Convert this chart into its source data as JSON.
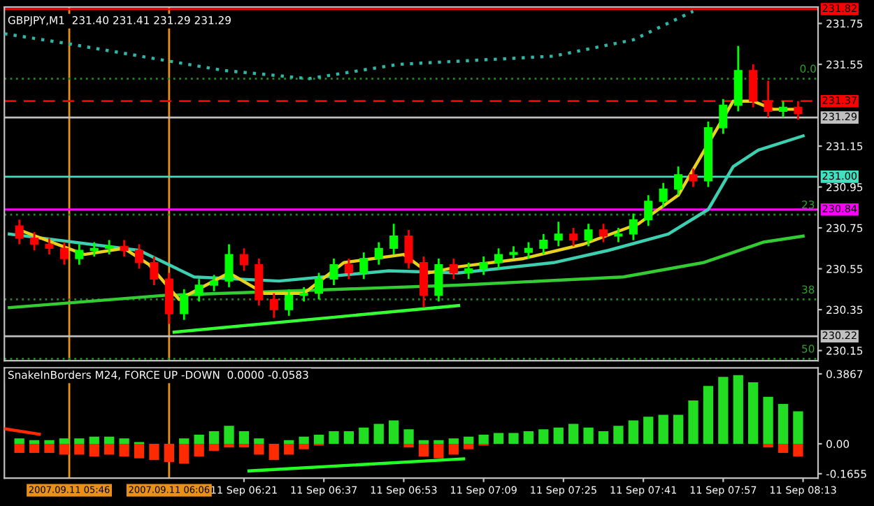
{
  "chart_data": [
    {
      "type": "candlestick",
      "title": "GBPJPY,M1  231.40 231.41 231.29 231.29",
      "tick_labels": "y",
      "grid": false,
      "xlim": [
        "2007-09-11T05:33",
        "2007-09-11T08:16"
      ],
      "ylim": [
        230.1,
        231.83
      ],
      "yticks": [
        231.75,
        231.55,
        231.15,
        230.95,
        230.75,
        230.55,
        230.35,
        230.15
      ],
      "series": [
        {
          "type": "line",
          "color": "#2fb5a5",
          "line_style": "dotted",
          "x": [
            "2007-09-11T05:33",
            "2007-09-11T05:46",
            "2007-09-11T06:05",
            "2007-09-11T06:17",
            "2007-09-11T06:34",
            "2007-09-11T06:52",
            "2007-09-11T07:23",
            "2007-09-11T07:39",
            "2007-09-11T07:51"
          ],
          "values": [
            231.7,
            231.65,
            231.57,
            231.52,
            231.48,
            231.55,
            231.59,
            231.67,
            231.81
          ]
        },
        {
          "type": "line",
          "color": "#33cc33",
          "x": [
            "2007-09-11T05:34",
            "2007-09-11T06:05",
            "2007-09-11T07:04",
            "2007-09-11T07:37",
            "2007-09-11T07:53",
            "2007-09-11T08:05",
            "2007-09-11T08:13"
          ],
          "values": [
            230.36,
            230.42,
            230.47,
            230.51,
            230.58,
            230.68,
            230.71
          ]
        },
        {
          "type": "line",
          "color": "#33ff33",
          "x": [
            "2007-09-11T06:07",
            "2007-09-11T07:04"
          ],
          "values": [
            230.24,
            230.37
          ]
        },
        {
          "type": "line",
          "color": "#3cd0b0",
          "x": [
            "2007-09-11T05:34",
            "2007-09-11T06:00",
            "2007-09-11T06:11",
            "2007-09-11T06:28",
            "2007-09-11T06:50",
            "2007-09-11T07:04",
            "2007-09-11T07:23",
            "2007-09-11T07:34",
            "2007-09-11T07:46",
            "2007-09-11T07:54",
            "2007-09-11T07:59",
            "2007-09-11T08:04",
            "2007-09-11T08:13"
          ],
          "values": [
            230.72,
            230.64,
            230.51,
            230.49,
            230.54,
            230.53,
            230.58,
            230.64,
            230.72,
            230.84,
            231.05,
            231.13,
            231.2
          ]
        },
        {
          "type": "line",
          "color": "#e8d21d",
          "x": [
            "2007-09-11T05:36",
            "2007-09-11T05:49",
            "2007-09-11T05:57",
            "2007-09-11T06:02",
            "2007-09-11T06:08",
            "2007-09-11T06:18",
            "2007-09-11T06:25",
            "2007-09-11T06:33",
            "2007-09-11T06:41",
            "2007-09-11T06:53",
            "2007-09-11T06:58",
            "2007-09-11T07:04",
            "2007-09-11T07:17",
            "2007-09-11T07:29",
            "2007-09-11T07:40",
            "2007-09-11T07:48",
            "2007-09-11T07:53",
            "2007-09-11T07:59",
            "2007-09-11T08:03",
            "2007-09-11T08:07",
            "2007-09-11T08:12"
          ],
          "values": [
            230.74,
            230.62,
            230.65,
            230.57,
            230.4,
            230.53,
            230.43,
            230.43,
            230.58,
            230.62,
            230.53,
            230.56,
            230.6,
            230.67,
            230.77,
            230.91,
            231.12,
            231.37,
            231.37,
            231.33,
            231.33
          ]
        },
        {
          "type": "candlestick",
          "x": [
            "2007-09-11T05:36",
            "2007-09-11T05:39",
            "2007-09-11T05:42",
            "2007-09-11T05:45",
            "2007-09-11T05:48",
            "2007-09-11T05:51",
            "2007-09-11T05:54",
            "2007-09-11T05:57",
            "2007-09-11T06:00",
            "2007-09-11T06:03",
            "2007-09-11T06:06",
            "2007-09-11T06:09",
            "2007-09-11T06:12",
            "2007-09-11T06:15",
            "2007-09-11T06:18",
            "2007-09-11T06:21",
            "2007-09-11T06:24",
            "2007-09-11T06:27",
            "2007-09-11T06:30",
            "2007-09-11T06:33",
            "2007-09-11T06:36",
            "2007-09-11T06:39",
            "2007-09-11T06:42",
            "2007-09-11T06:45",
            "2007-09-11T06:48",
            "2007-09-11T06:51",
            "2007-09-11T06:54",
            "2007-09-11T06:57",
            "2007-09-11T07:00",
            "2007-09-11T07:03",
            "2007-09-11T07:06",
            "2007-09-11T07:09",
            "2007-09-11T07:12",
            "2007-09-11T07:15",
            "2007-09-11T07:18",
            "2007-09-11T07:21",
            "2007-09-11T07:24",
            "2007-09-11T07:27",
            "2007-09-11T07:30",
            "2007-09-11T07:33",
            "2007-09-11T07:36",
            "2007-09-11T07:39",
            "2007-09-11T07:42",
            "2007-09-11T07:45",
            "2007-09-11T07:48",
            "2007-09-11T07:51",
            "2007-09-11T07:54",
            "2007-09-11T07:57",
            "2007-09-11T08:00",
            "2007-09-11T08:03",
            "2007-09-11T08:06",
            "2007-09-11T08:09",
            "2007-09-11T08:12"
          ],
          "ohlc": [
            [
              230.76,
              230.79,
              230.67,
              230.7
            ],
            [
              230.7,
              230.73,
              230.64,
              230.67
            ],
            [
              230.67,
              230.7,
              230.62,
              230.65
            ],
            [
              230.65,
              230.68,
              230.57,
              230.6
            ],
            [
              230.6,
              230.67,
              230.57,
              230.64
            ],
            [
              230.64,
              230.68,
              230.61,
              230.65
            ],
            [
              230.65,
              230.69,
              230.62,
              230.66
            ],
            [
              230.66,
              230.69,
              230.61,
              230.64
            ],
            [
              230.64,
              230.67,
              230.55,
              230.58
            ],
            [
              230.58,
              230.61,
              230.47,
              230.5
            ],
            [
              230.5,
              230.53,
              230.28,
              230.33
            ],
            [
              230.33,
              230.45,
              230.3,
              230.42
            ],
            [
              230.42,
              230.5,
              230.39,
              230.47
            ],
            [
              230.47,
              230.52,
              230.44,
              230.49
            ],
            [
              230.49,
              230.67,
              230.46,
              230.62
            ],
            [
              230.62,
              230.65,
              230.54,
              230.57
            ],
            [
              230.57,
              230.6,
              230.37,
              230.4
            ],
            [
              230.4,
              230.43,
              230.31,
              230.35
            ],
            [
              230.35,
              230.45,
              230.32,
              230.42
            ],
            [
              230.42,
              230.46,
              230.39,
              230.43
            ],
            [
              230.43,
              230.53,
              230.4,
              230.5
            ],
            [
              230.5,
              230.6,
              230.47,
              230.57
            ],
            [
              230.57,
              230.6,
              230.5,
              230.53
            ],
            [
              230.53,
              230.63,
              230.5,
              230.6
            ],
            [
              230.6,
              230.68,
              230.57,
              230.65
            ],
            [
              230.65,
              230.77,
              230.62,
              230.71
            ],
            [
              230.71,
              230.74,
              230.55,
              230.58
            ],
            [
              230.58,
              230.61,
              230.36,
              230.42
            ],
            [
              230.42,
              230.6,
              230.39,
              230.57
            ],
            [
              230.57,
              230.6,
              230.5,
              230.53
            ],
            [
              230.53,
              230.58,
              230.5,
              230.55
            ],
            [
              230.55,
              230.61,
              230.52,
              230.58
            ],
            [
              230.58,
              230.65,
              230.55,
              230.62
            ],
            [
              230.62,
              230.66,
              230.6,
              230.63
            ],
            [
              230.63,
              230.68,
              230.6,
              230.65
            ],
            [
              230.65,
              230.72,
              230.62,
              230.69
            ],
            [
              230.69,
              230.78,
              230.66,
              230.72
            ],
            [
              230.72,
              230.75,
              230.66,
              230.69
            ],
            [
              230.69,
              230.77,
              230.66,
              230.74
            ],
            [
              230.74,
              230.77,
              230.68,
              230.71
            ],
            [
              230.71,
              230.75,
              230.68,
              230.72
            ],
            [
              230.72,
              230.82,
              230.69,
              230.79
            ],
            [
              230.79,
              230.91,
              230.76,
              230.88
            ],
            [
              230.88,
              230.97,
              230.85,
              230.94
            ],
            [
              230.94,
              231.05,
              230.91,
              231.01
            ],
            [
              231.01,
              231.04,
              230.95,
              230.98
            ],
            [
              230.98,
              231.27,
              230.95,
              231.24
            ],
            [
              231.24,
              231.38,
              231.21,
              231.35
            ],
            [
              231.35,
              231.64,
              231.32,
              231.52
            ],
            [
              231.52,
              231.55,
              231.34,
              231.37
            ],
            [
              231.37,
              231.47,
              231.29,
              231.32
            ],
            [
              231.32,
              231.37,
              231.29,
              231.34
            ],
            [
              231.34,
              231.37,
              231.28,
              231.31
            ]
          ],
          "colors": [
            "#ff0000",
            "#ff0000",
            "#ff0000",
            "#ff0000",
            "#00ff00",
            "#00ff00",
            "#00ff00",
            "#ff0000",
            "#ff0000",
            "#ff0000",
            "#ff0000",
            "#00ff00",
            "#00ff00",
            "#00ff00",
            "#00ff00",
            "#ff0000",
            "#ff0000",
            "#ff0000",
            "#00ff00",
            "#00ff00",
            "#00ff00",
            "#00ff00",
            "#ff0000",
            "#00ff00",
            "#00ff00",
            "#00ff00",
            "#ff0000",
            "#ff0000",
            "#00ff00",
            "#ff0000",
            "#00ff00",
            "#00ff00",
            "#00ff00",
            "#00ff00",
            "#00ff00",
            "#00ff00",
            "#00ff00",
            "#ff0000",
            "#00ff00",
            "#ff0000",
            "#00ff00",
            "#00ff00",
            "#00ff00",
            "#00ff00",
            "#00ff00",
            "#ff0000",
            "#00ff00",
            "#00ff00",
            "#00ff00",
            "#ff0000",
            "#ff0000",
            "#00ff00",
            "#ff0000"
          ]
        }
      ],
      "ref_lines": [
        {
          "axis": "x",
          "value": "2007-09-11T05:46",
          "color": "#e8901a",
          "line_style": "solid"
        },
        {
          "axis": "x",
          "value": "2007-09-11T06:06",
          "color": "#e8901a",
          "line_style": "solid"
        },
        {
          "axis": "y",
          "value": 231.82,
          "label": "231.82",
          "color": "#ff0000",
          "line_style": "solid"
        },
        {
          "axis": "y",
          "value": 231.48,
          "color": "#1f8a1f",
          "line_style": "dotted"
        },
        {
          "axis": "y",
          "value": 231.37,
          "label": "231.37",
          "color": "#ff0000",
          "line_style": "dashed"
        },
        {
          "axis": "y",
          "value": 231.29,
          "label": "231.29",
          "color": "#c0c0c0",
          "line_style": "solid"
        },
        {
          "axis": "y",
          "value": 231.0,
          "label": "231.00",
          "color": "#40e0c0",
          "line_style": "solid"
        },
        {
          "axis": "y",
          "value": 230.84,
          "label": "230.84",
          "color": "#ff00ff",
          "line_style": "solid"
        },
        {
          "axis": "y",
          "value": 230.815,
          "color": "#1f8a1f",
          "line_style": "dotted"
        },
        {
          "axis": "y",
          "value": 230.4,
          "color": "#1f8a1f",
          "line_style": "dotted"
        },
        {
          "axis": "y",
          "value": 230.22,
          "label": "230.22",
          "color": "#c0c0c0",
          "line_style": "solid"
        },
        {
          "axis": "y",
          "value": 230.11,
          "color": "#1f8a1f",
          "line_style": "dotted"
        }
      ],
      "annotations": [
        {
          "text": "0.0",
          "x": "2007-09-11T08:14",
          "y": 231.48
        },
        {
          "text": "23",
          "x": "2007-09-11T08:14",
          "y": 230.815
        },
        {
          "text": "38",
          "x": "2007-09-11T08:14",
          "y": 230.4
        },
        {
          "text": "50",
          "x": "2007-09-11T08:14",
          "y": 230.11
        }
      ]
    },
    {
      "type": "bar",
      "title": "SnakeInBorders M24, FORCE UP -DOWN  0.0000 -0.0583",
      "grid": false,
      "xlim": [
        "2007-09-11T05:33",
        "2007-09-11T08:16"
      ],
      "ylim": [
        -0.19,
        0.42
      ],
      "yticks": [
        0.3867,
        {
          "value": 0,
          "label": "0.00"
        },
        -0.1655
      ],
      "xticks": [
        {
          "value": "2007-09-11T06:21",
          "label": "11 Sep 06:21"
        },
        {
          "value": "2007-09-11T06:37",
          "label": "11 Sep 06:37"
        },
        {
          "value": "2007-09-11T06:53",
          "label": "11 Sep 06:53"
        },
        {
          "value": "2007-09-11T07:09",
          "label": "11 Sep 07:09"
        },
        {
          "value": "2007-09-11T07:25",
          "label": "11 Sep 07:25"
        },
        {
          "value": "2007-09-11T07:41",
          "label": "11 Sep 07:41"
        },
        {
          "value": "2007-09-11T07:57",
          "label": "11 Sep 07:57"
        },
        {
          "value": "2007-09-11T08:13",
          "label": "11 Sep 08:13"
        }
      ],
      "x": [
        "2007-09-11T05:36",
        "2007-09-11T05:39",
        "2007-09-11T05:42",
        "2007-09-11T05:45",
        "2007-09-11T05:48",
        "2007-09-11T05:51",
        "2007-09-11T05:54",
        "2007-09-11T05:57",
        "2007-09-11T06:00",
        "2007-09-11T06:03",
        "2007-09-11T06:06",
        "2007-09-11T06:09",
        "2007-09-11T06:12",
        "2007-09-11T06:15",
        "2007-09-11T06:18",
        "2007-09-11T06:21",
        "2007-09-11T06:24",
        "2007-09-11T06:27",
        "2007-09-11T06:30",
        "2007-09-11T06:33",
        "2007-09-11T06:36",
        "2007-09-11T06:39",
        "2007-09-11T06:42",
        "2007-09-11T06:45",
        "2007-09-11T06:48",
        "2007-09-11T06:51",
        "2007-09-11T06:54",
        "2007-09-11T06:57",
        "2007-09-11T07:00",
        "2007-09-11T07:03",
        "2007-09-11T07:06",
        "2007-09-11T07:09",
        "2007-09-11T07:12",
        "2007-09-11T07:15",
        "2007-09-11T07:18",
        "2007-09-11T07:21",
        "2007-09-11T07:24",
        "2007-09-11T07:27",
        "2007-09-11T07:30",
        "2007-09-11T07:33",
        "2007-09-11T07:36",
        "2007-09-11T07:39",
        "2007-09-11T07:42",
        "2007-09-11T07:45",
        "2007-09-11T07:48",
        "2007-09-11T07:51",
        "2007-09-11T07:54",
        "2007-09-11T07:57",
        "2007-09-11T08:00",
        "2007-09-11T08:03",
        "2007-09-11T08:06",
        "2007-09-11T08:09",
        "2007-09-11T08:12"
      ],
      "series": [
        {
          "color": "#22dd22",
          "values": [
            0.03,
            0.02,
            0.02,
            0.03,
            0.03,
            0.04,
            0.04,
            0.03,
            0.01,
            0.0,
            0.0,
            0.03,
            0.05,
            0.07,
            0.1,
            0.07,
            0.03,
            0.0,
            0.02,
            0.04,
            0.05,
            0.07,
            0.07,
            0.09,
            0.11,
            0.13,
            0.08,
            0.02,
            0.02,
            0.03,
            0.04,
            0.05,
            0.06,
            0.06,
            0.07,
            0.08,
            0.09,
            0.11,
            0.09,
            0.07,
            0.1,
            0.13,
            0.15,
            0.16,
            0.16,
            0.24,
            0.32,
            0.37,
            0.38,
            0.34,
            0.26,
            0.22,
            0.18
          ]
        },
        {
          "color": "#ff2a00",
          "values": [
            -0.05,
            -0.05,
            -0.05,
            -0.06,
            -0.06,
            -0.07,
            -0.06,
            -0.07,
            -0.08,
            -0.09,
            -0.1,
            -0.11,
            -0.07,
            -0.04,
            -0.02,
            -0.02,
            -0.06,
            -0.09,
            -0.06,
            -0.03,
            -0.01,
            0.0,
            0.0,
            0.0,
            0.0,
            0.0,
            -0.02,
            -0.07,
            -0.08,
            -0.06,
            -0.03,
            -0.01,
            0.0,
            0.0,
            0.0,
            0.0,
            0.0,
            0.0,
            0.0,
            0.0,
            0.0,
            0.0,
            0.0,
            0.0,
            0.0,
            0.0,
            0.0,
            0.0,
            0.0,
            0.0,
            -0.02,
            -0.05,
            -0.07
          ]
        },
        {
          "type": "line",
          "color": "#ff2a00",
          "x": [
            "2007-09-11T05:33",
            "2007-09-11T05:40"
          ],
          "values": [
            0.083,
            0.053
          ]
        },
        {
          "type": "line",
          "color": "#22ff22",
          "x": [
            "2007-09-11T06:22",
            "2007-09-11T07:05"
          ],
          "values": [
            -0.15,
            -0.083
          ]
        }
      ],
      "ref_lines": [
        {
          "axis": "x",
          "value": "2007-09-11T05:46",
          "label": "2007.09.11 05:46",
          "color": "#e8901a",
          "line_style": "solid"
        },
        {
          "axis": "x",
          "value": "2007-09-11T06:06",
          "label": "2007.09.11 06:06",
          "color": "#e8901a",
          "line_style": "solid"
        }
      ]
    }
  ]
}
